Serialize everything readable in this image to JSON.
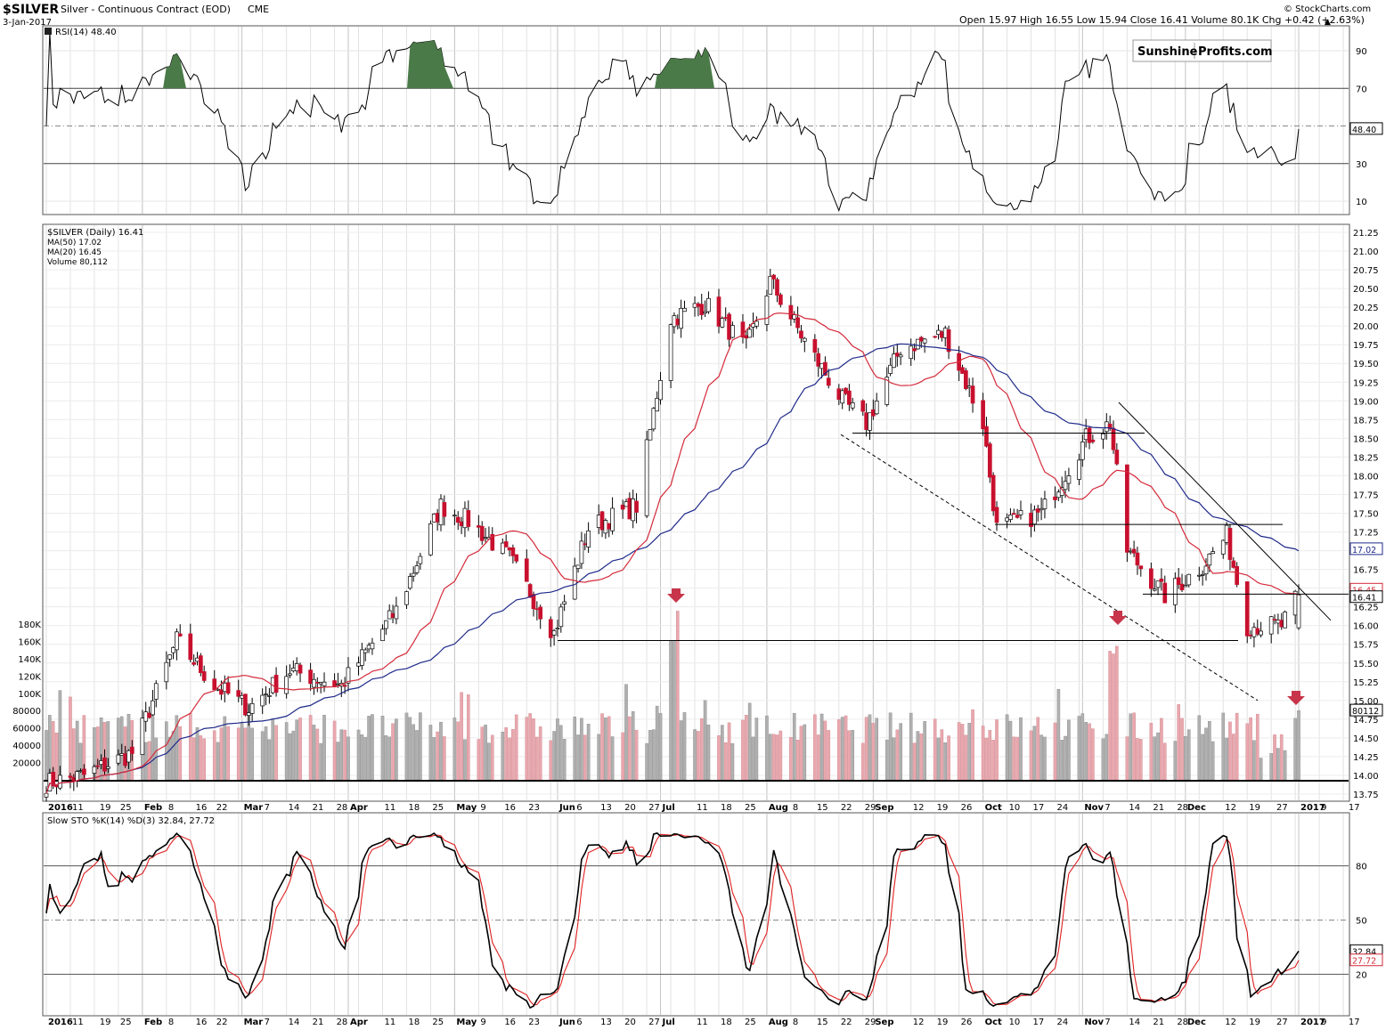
{
  "header": {
    "symbol": "$SILVER",
    "name": "Silver - Continuous Contract (EOD)",
    "exchange": "CME",
    "date": "3-Jan-2017",
    "ohlc": "Open 15.97  High 16.55  Low 15.94  Close 16.41  Volume 80.1K  Chg +0.42 (+2.63%)",
    "credit": "© StockCharts.com",
    "up_arrow": "▲"
  },
  "logo": {
    "word1": "Sunshine",
    "word2": "Profits.com"
  },
  "colors": {
    "up": "#ffffff",
    "down": "#c8102e",
    "ma50": "#1f2a8a",
    "ma20": "#d42a3a",
    "rsi_fill": "#4a7a48",
    "vol_up": "#b0b0b0",
    "vol_down": "#e8a8ae",
    "arrow": "#c8354a"
  },
  "panels": {
    "rsi": {
      "label": "RSI(14) 48.40",
      "value": "48.40",
      "ticks": [
        "90",
        "70",
        "50",
        "30",
        "10"
      ]
    },
    "price": {
      "legend": [
        "$SILVER (Daily) 16.41",
        "MA(50) 17.02",
        "MA(20) 16.45",
        "Volume 80,112"
      ],
      "ticks": [
        "21.25",
        "21.00",
        "20.75",
        "20.50",
        "20.25",
        "20.00",
        "19.75",
        "19.50",
        "19.25",
        "19.00",
        "18.75",
        "18.50",
        "18.25",
        "18.00",
        "17.75",
        "17.50",
        "17.25",
        "17.00",
        "16.75",
        "16.50",
        "16.25",
        "16.00",
        "15.75",
        "15.50",
        "15.25",
        "15.00",
        "14.75",
        "14.50",
        "14.25",
        "14.00",
        "13.75"
      ],
      "tags": {
        "ma50": "17.02",
        "ma20": "16.45",
        "close": "16.41",
        "volume": "80112"
      },
      "volume_ticks": [
        "180K",
        "160K",
        "140K",
        "120K",
        "100K",
        "80000",
        "60000",
        "40000",
        "20000"
      ]
    },
    "sto": {
      "label": "Slow STO %K(14) %D(3) 32.84, 27.72",
      "k_value": "32.84",
      "d_value": "27.72",
      "ticks": [
        "80",
        "50",
        "20"
      ]
    }
  },
  "xaxis": {
    "labels": [
      "2016",
      "11",
      "19",
      "25",
      "Feb",
      "8",
      "16",
      "22",
      "Mar",
      "7",
      "14",
      "21",
      "28",
      "Apr",
      "11",
      "18",
      "25",
      "May",
      "9",
      "16",
      "23",
      "Jun",
      "6",
      "13",
      "20",
      "27",
      "Jul",
      "11",
      "18",
      "25",
      "Aug",
      "8",
      "15",
      "22",
      "29",
      "Sep",
      "12",
      "19",
      "26",
      "Oct",
      "10",
      "17",
      "24",
      "Nov",
      "7",
      "14",
      "21",
      "28",
      "Dec",
      "12",
      "19",
      "27",
      "2017",
      "9",
      "17"
    ]
  },
  "chart_data": {
    "type": "candlestick",
    "title": "$SILVER Silver - Continuous Contract (EOD) CME",
    "date_range": [
      "2016-01-04",
      "2017-01-03"
    ],
    "ylim": [
      13.75,
      21.25
    ],
    "last_bar": {
      "date": "2017-01-03",
      "open": 15.97,
      "high": 16.55,
      "low": 15.94,
      "close": 16.41,
      "volume": 80112
    },
    "daily_close_approx": [
      {
        "date": "2016-01-04",
        "close": 13.9
      },
      {
        "date": "2016-01-15",
        "close": 14.0
      },
      {
        "date": "2016-01-29",
        "close": 14.3
      },
      {
        "date": "2016-02-11",
        "close": 15.8
      },
      {
        "date": "2016-02-22",
        "close": 15.2
      },
      {
        "date": "2016-03-03",
        "close": 14.9
      },
      {
        "date": "2016-03-15",
        "close": 15.4
      },
      {
        "date": "2016-03-30",
        "close": 15.2
      },
      {
        "date": "2016-04-15",
        "close": 16.2
      },
      {
        "date": "2016-04-28",
        "close": 17.6
      },
      {
        "date": "2016-05-06",
        "close": 17.4
      },
      {
        "date": "2016-05-18",
        "close": 16.9
      },
      {
        "date": "2016-05-31",
        "close": 15.9
      },
      {
        "date": "2016-06-10",
        "close": 17.3
      },
      {
        "date": "2016-06-24",
        "close": 17.6
      },
      {
        "date": "2016-07-04",
        "close": 20.1
      },
      {
        "date": "2016-07-14",
        "close": 20.3
      },
      {
        "date": "2016-07-26",
        "close": 19.7
      },
      {
        "date": "2016-08-02",
        "close": 20.6
      },
      {
        "date": "2016-08-12",
        "close": 19.8
      },
      {
        "date": "2016-08-23",
        "close": 19.0
      },
      {
        "date": "2016-08-30",
        "close": 18.7
      },
      {
        "date": "2016-09-09",
        "close": 19.7
      },
      {
        "date": "2016-09-22",
        "close": 19.9
      },
      {
        "date": "2016-10-03",
        "close": 18.7
      },
      {
        "date": "2016-10-07",
        "close": 17.3
      },
      {
        "date": "2016-10-20",
        "close": 17.5
      },
      {
        "date": "2016-11-02",
        "close": 18.5
      },
      {
        "date": "2016-11-09",
        "close": 18.7
      },
      {
        "date": "2016-11-14",
        "close": 17.0
      },
      {
        "date": "2016-11-25",
        "close": 16.4
      },
      {
        "date": "2016-12-06",
        "close": 16.8
      },
      {
        "date": "2016-12-13",
        "close": 17.2
      },
      {
        "date": "2016-12-19",
        "close": 16.0
      },
      {
        "date": "2016-12-29",
        "close": 16.0
      },
      {
        "date": "2017-01-03",
        "close": 16.41
      }
    ],
    "series": [
      {
        "name": "MA(50)",
        "last": 17.02
      },
      {
        "name": "MA(20)",
        "last": 16.45
      },
      {
        "name": "RSI(14)",
        "last": 48.4
      },
      {
        "name": "Slow STO %K(14)",
        "last": 32.84
      },
      {
        "name": "Slow STO %D(3)",
        "last": 27.72
      }
    ],
    "rsi_overbought": 70,
    "rsi_oversold": 30,
    "sto_levels": [
      80,
      50,
      20
    ],
    "support_resistance": [
      15.8,
      16.42,
      17.35,
      18.55
    ],
    "grid": true
  }
}
